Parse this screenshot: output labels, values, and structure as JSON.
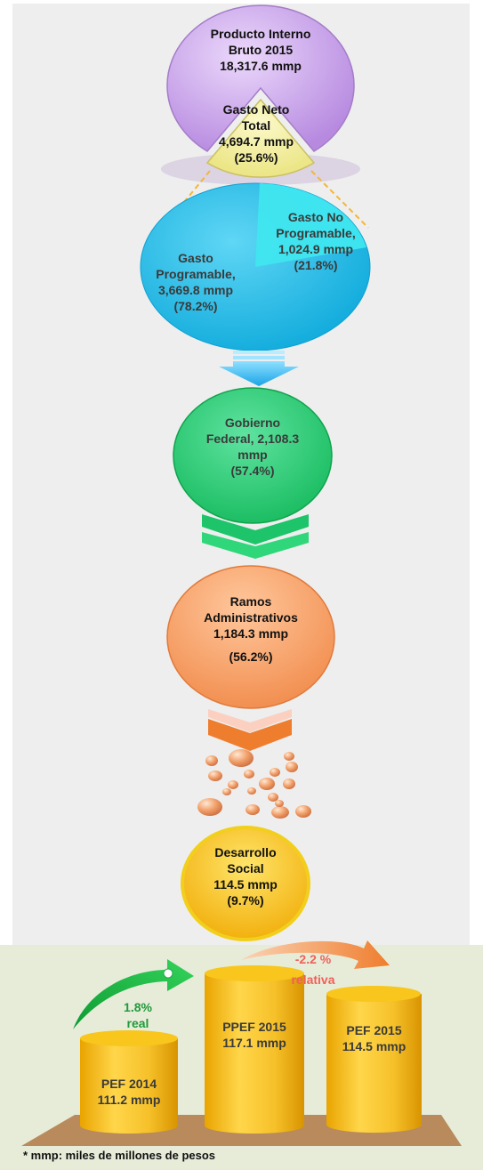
{
  "pib": {
    "line1": "Producto Interno",
    "line2": "Bruto 2015",
    "line3": "18,317.6  mmp"
  },
  "gasto_neto": {
    "line1": "Gasto Neto",
    "line2": "Total",
    "line3": "4,694.7 mmp",
    "line4": "(25.6%)"
  },
  "no_programable": {
    "line1": "Gasto No",
    "line2": "Programable,",
    "line3": "1,024.9 mmp",
    "line4": "(21.8%)"
  },
  "programable": {
    "line1": "Gasto",
    "line2": "Programable,",
    "line3": "3,669.8 mmp",
    "line4": "(78.2%)"
  },
  "gobierno": {
    "line1": "Gobierno",
    "line2": "Federal, 2,108.3",
    "line3": "mmp",
    "line4": "(57.4%)"
  },
  "ramos": {
    "line1": "Ramos",
    "line2": "Administrativos",
    "line3": "1,184.3 mmp",
    "line4": "(56.2%)"
  },
  "desarrollo": {
    "line1": "Desarrollo",
    "line2": "Social",
    "line3": "114.5 mmp",
    "line4": "(9.7%)"
  },
  "pef2014": {
    "line1": "PEF 2014",
    "line2": "111.2 mmp"
  },
  "ppef2015": {
    "line1": "PPEF 2015",
    "line2": "117.1 mmp"
  },
  "pef2015": {
    "line1": "PEF 2015",
    "line2": "114.5 mmp"
  },
  "real_change": {
    "value": "1.8%",
    "label": "real"
  },
  "relative_change": {
    "value": "-2.2 %",
    "label": "relativa"
  },
  "footnote": "* mmp: miles de millones de pesos",
  "colors": {
    "pib": "#c8a2e8",
    "gasto_neto": "#f3ef9a",
    "programable": "#1bbde9",
    "no_programable": "#3fe6ef",
    "gobierno": "#1fcf70",
    "ramos": "#f59a5a",
    "desarrollo": "#f7c21a",
    "real": "#22b14c",
    "relative": "#f08a3c"
  }
}
